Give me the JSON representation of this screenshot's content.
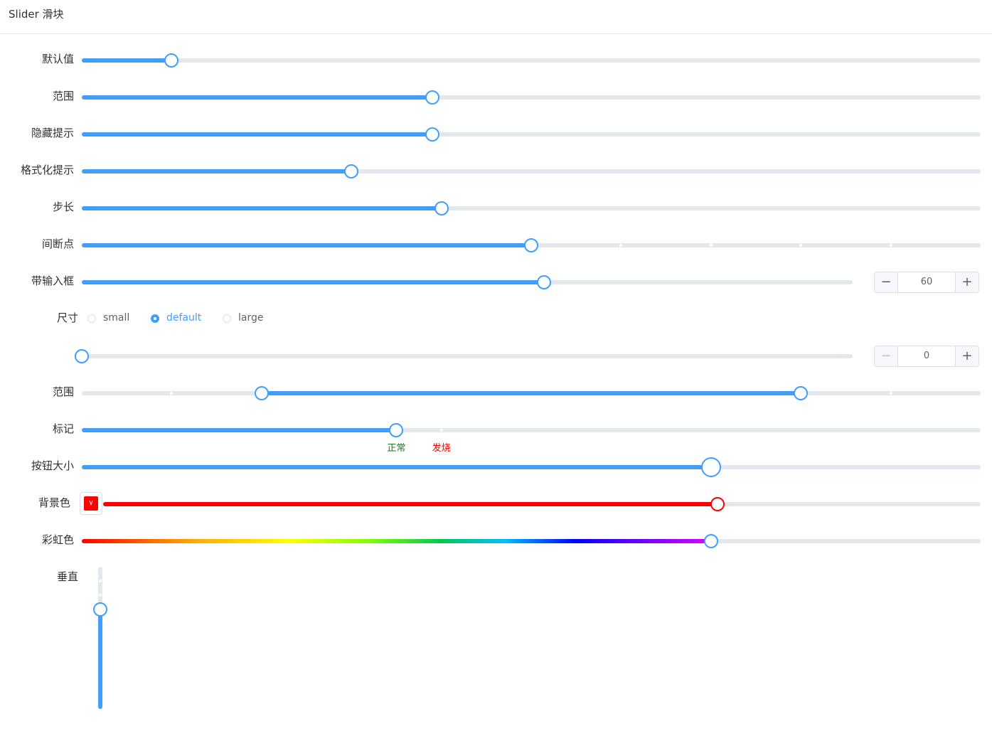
{
  "header": {
    "title": "Slider 滑块"
  },
  "colors": {
    "primary": "#409eff",
    "track": "#e4e7ed",
    "bg_color_fill": "#ff0000",
    "mark_normal": "#1a7a1a",
    "mark_fever": "#e60000"
  },
  "rows": {
    "default": {
      "label": "默认值",
      "value": 10
    },
    "range": {
      "label": "范围",
      "value": 39
    },
    "hide_tooltip": {
      "label": "隐藏提示",
      "value": 39
    },
    "format_tooltip": {
      "label": "格式化提示",
      "value": 30
    },
    "step": {
      "label": "步长",
      "value": 40
    },
    "show_stops": {
      "label": "间断点",
      "value": 50,
      "stops": [
        60,
        70,
        80,
        90
      ]
    },
    "with_input": {
      "label": "带输入框",
      "value": 60,
      "input_value": "60"
    },
    "size": {
      "label": "尺寸",
      "options": [
        {
          "label": "small",
          "selected": false
        },
        {
          "label": "default",
          "selected": true
        },
        {
          "label": "large",
          "selected": false
        }
      ],
      "value": 0,
      "input_value": "0"
    },
    "range_select": {
      "label": "范围",
      "value_start": 20,
      "value_end": 80,
      "stops": [
        10,
        90
      ]
    },
    "marks": {
      "label": "标记",
      "value": 35,
      "marks": [
        {
          "at": 35,
          "label": "正常"
        },
        {
          "at": 40,
          "label": "发烧"
        }
      ]
    },
    "button_size": {
      "label": "按钮大小",
      "value": 70
    },
    "bg_color": {
      "label": "背景色",
      "value": 70
    },
    "rainbow": {
      "label": "彩虹色",
      "value": 70
    },
    "vertical": {
      "label": "垂直",
      "value": 70,
      "stops": [
        90,
        80
      ]
    }
  },
  "icons": {
    "minus": "−",
    "plus": "+",
    "chevron": "∨"
  }
}
